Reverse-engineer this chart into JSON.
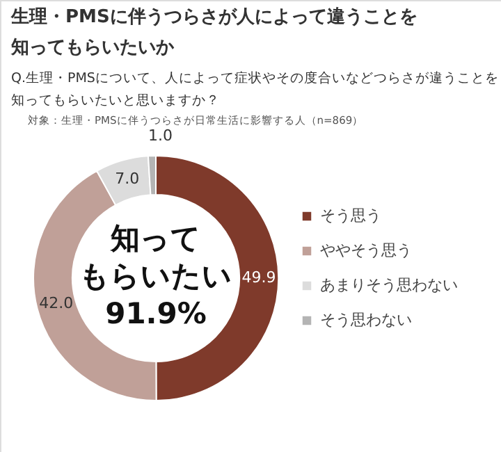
{
  "chart_data": {
    "type": "donut",
    "title": "生理・PMSに伴うつらさが人によって違うことを知ってもらいたいか",
    "subtitle": "Q.生理・PMSについて、人によって症状やその度合いなどつらさが違うことを知ってもらいたいと思いますか？",
    "annotations": [
      "対象：生理・PMSに伴うつらさが日常生活に影響する人（n=869）",
      "知って",
      "もらいたい",
      "91.9%"
    ],
    "categories": [
      "そう思う",
      "ややそう思う",
      "あまりそう思わない",
      "そう思わない"
    ],
    "values": [
      49.9,
      42.0,
      7.0,
      1.0
    ],
    "value_labels": [
      "49.9",
      "42.0",
      "7.0",
      "1.0"
    ],
    "colors": [
      "#7f3a2b",
      "#c0a098",
      "#dcdcdc",
      "#b4b4b4"
    ],
    "legend": "right"
  }
}
